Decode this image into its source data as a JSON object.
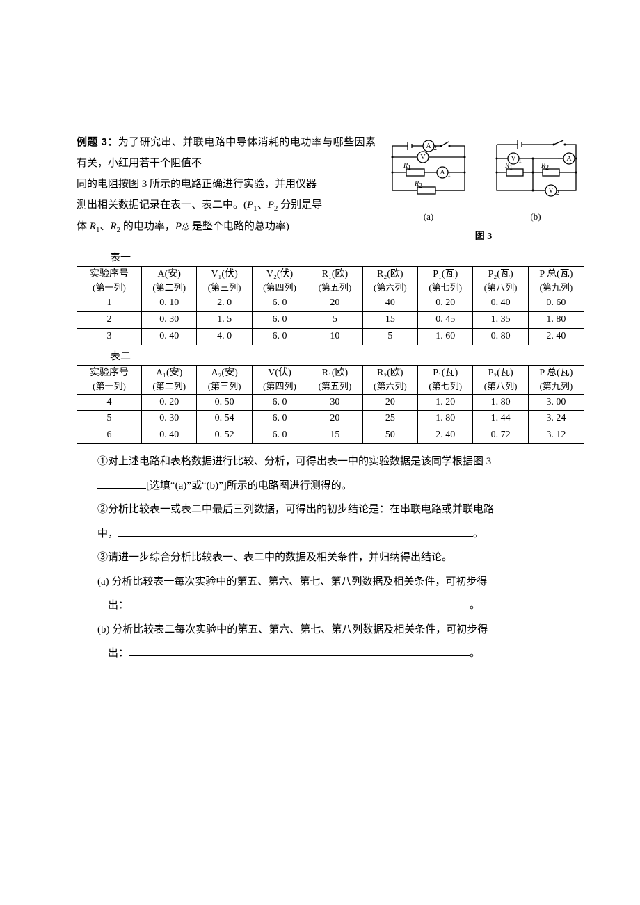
{
  "problem": {
    "label": "例题 3：",
    "intro_line1": "为了研究串、并联电路中导体消耗的电功率与哪些因素有关，小红用若干个阻值不",
    "intro_line2_a": "同的电阻按图 3 所示的电路正确进行实验，并用仪器",
    "intro_line2_b": "测出相关数据记录在表一、表二中。(",
    "intro_line2_c": "、",
    "intro_line2_d": " 分别是导",
    "intro_line3_a": "体 ",
    "intro_line3_b": "、",
    "intro_line3_c": " 的电功率，",
    "intro_line3_d": " 是整个电路的总功率)",
    "P1": "P",
    "P1sub": "1",
    "P2": "P",
    "P2sub": "2",
    "R1": "R",
    "R1sub": "1",
    "R2": "R",
    "R2sub": "2",
    "Ptotal": "P",
    "Ptotal_sub": "总"
  },
  "figure": {
    "sub_a": "(a)",
    "sub_b": "(b)",
    "main": "图 3",
    "labels": {
      "A1": "A",
      "A2": "A",
      "V": "V",
      "V1": "V",
      "V2": "V",
      "R1": "R",
      "R2": "R",
      "sub1": "1",
      "sub2": "2"
    }
  },
  "table1": {
    "label": "表一",
    "headers": [
      {
        "t": "实验序号",
        "s": "(第一列)"
      },
      {
        "t": "A(安)",
        "s": "(第二列)"
      },
      {
        "t": "V₁(伏)",
        "s": "(第三列)"
      },
      {
        "t": "V₂(伏)",
        "s": "(第四列)"
      },
      {
        "t": "R₁(欧)",
        "s": "(第五列)"
      },
      {
        "t": "R₂(欧)",
        "s": "(第六列)"
      },
      {
        "t": "P₁(瓦)",
        "s": "(第七列)"
      },
      {
        "t": "P₂(瓦)",
        "s": "(第八列)"
      },
      {
        "t": "P 总(瓦)",
        "s": "(第九列)"
      }
    ],
    "rows": [
      [
        "1",
        "0. 10",
        "2. 0",
        "6. 0",
        "20",
        "40",
        "0. 20",
        "0. 40",
        "0. 60"
      ],
      [
        "2",
        "0. 30",
        "1. 5",
        "6. 0",
        "5",
        "15",
        "0. 45",
        "1. 35",
        "1. 80"
      ],
      [
        "3",
        "0. 40",
        "4. 0",
        "6. 0",
        "10",
        "5",
        "1. 60",
        "0. 80",
        "2. 40"
      ]
    ]
  },
  "table2": {
    "label": "表二",
    "headers": [
      {
        "t": "实验序号",
        "s": "(第一列)"
      },
      {
        "t": "A₁(安)",
        "s": "(第二列)"
      },
      {
        "t": "A₂(安)",
        "s": "(第三列)"
      },
      {
        "t": "V(伏)",
        "s": "(第四列)"
      },
      {
        "t": "R₁(欧)",
        "s": "(第五列)"
      },
      {
        "t": "R₂(欧)",
        "s": "(第六列)"
      },
      {
        "t": "P₁(瓦)",
        "s": "(第七列)"
      },
      {
        "t": "P₂(瓦)",
        "s": "(第八列)"
      },
      {
        "t": "P 总(瓦)",
        "s": "(第九列)"
      }
    ],
    "rows": [
      [
        "4",
        "0. 20",
        "0. 50",
        "6. 0",
        "30",
        "20",
        "1. 20",
        "1. 80",
        "3. 00"
      ],
      [
        "5",
        "0. 30",
        "0. 54",
        "6. 0",
        "20",
        "25",
        "1. 80",
        "1. 44",
        "3. 24"
      ],
      [
        "6",
        "0. 40",
        "0. 52",
        "6. 0",
        "15",
        "50",
        "2. 40",
        "0. 72",
        "3. 12"
      ]
    ]
  },
  "questions": {
    "q1a": "①对上述电路和表格数据进行比较、分析，可得出表一中的实验数据是该同学根据图 3",
    "q1b": "[选填“(a)”或“(b)”]所示的电路图进行测得的。",
    "q2a": "②分析比较表一或表二中最后三列数据，可得出的初步结论是：在串联电路或并联电路",
    "q2b": "中，",
    "q2c": "。",
    "q3": "③请进一步综合分析比较表一、表二中的数据及相关条件，并归纳得出结论。",
    "q3a1": "(a) 分析比较表一每次实验中的第五、第六、第七、第八列数据及相关条件，可初步得",
    "q3a2": "出：",
    "q3a3": "。",
    "q3b1": "(b) 分析比较表二每次实验中的第五、第六、第七、第八列数据及相关条件，可初步得",
    "q3b2": "出：",
    "q3b3": "。"
  }
}
